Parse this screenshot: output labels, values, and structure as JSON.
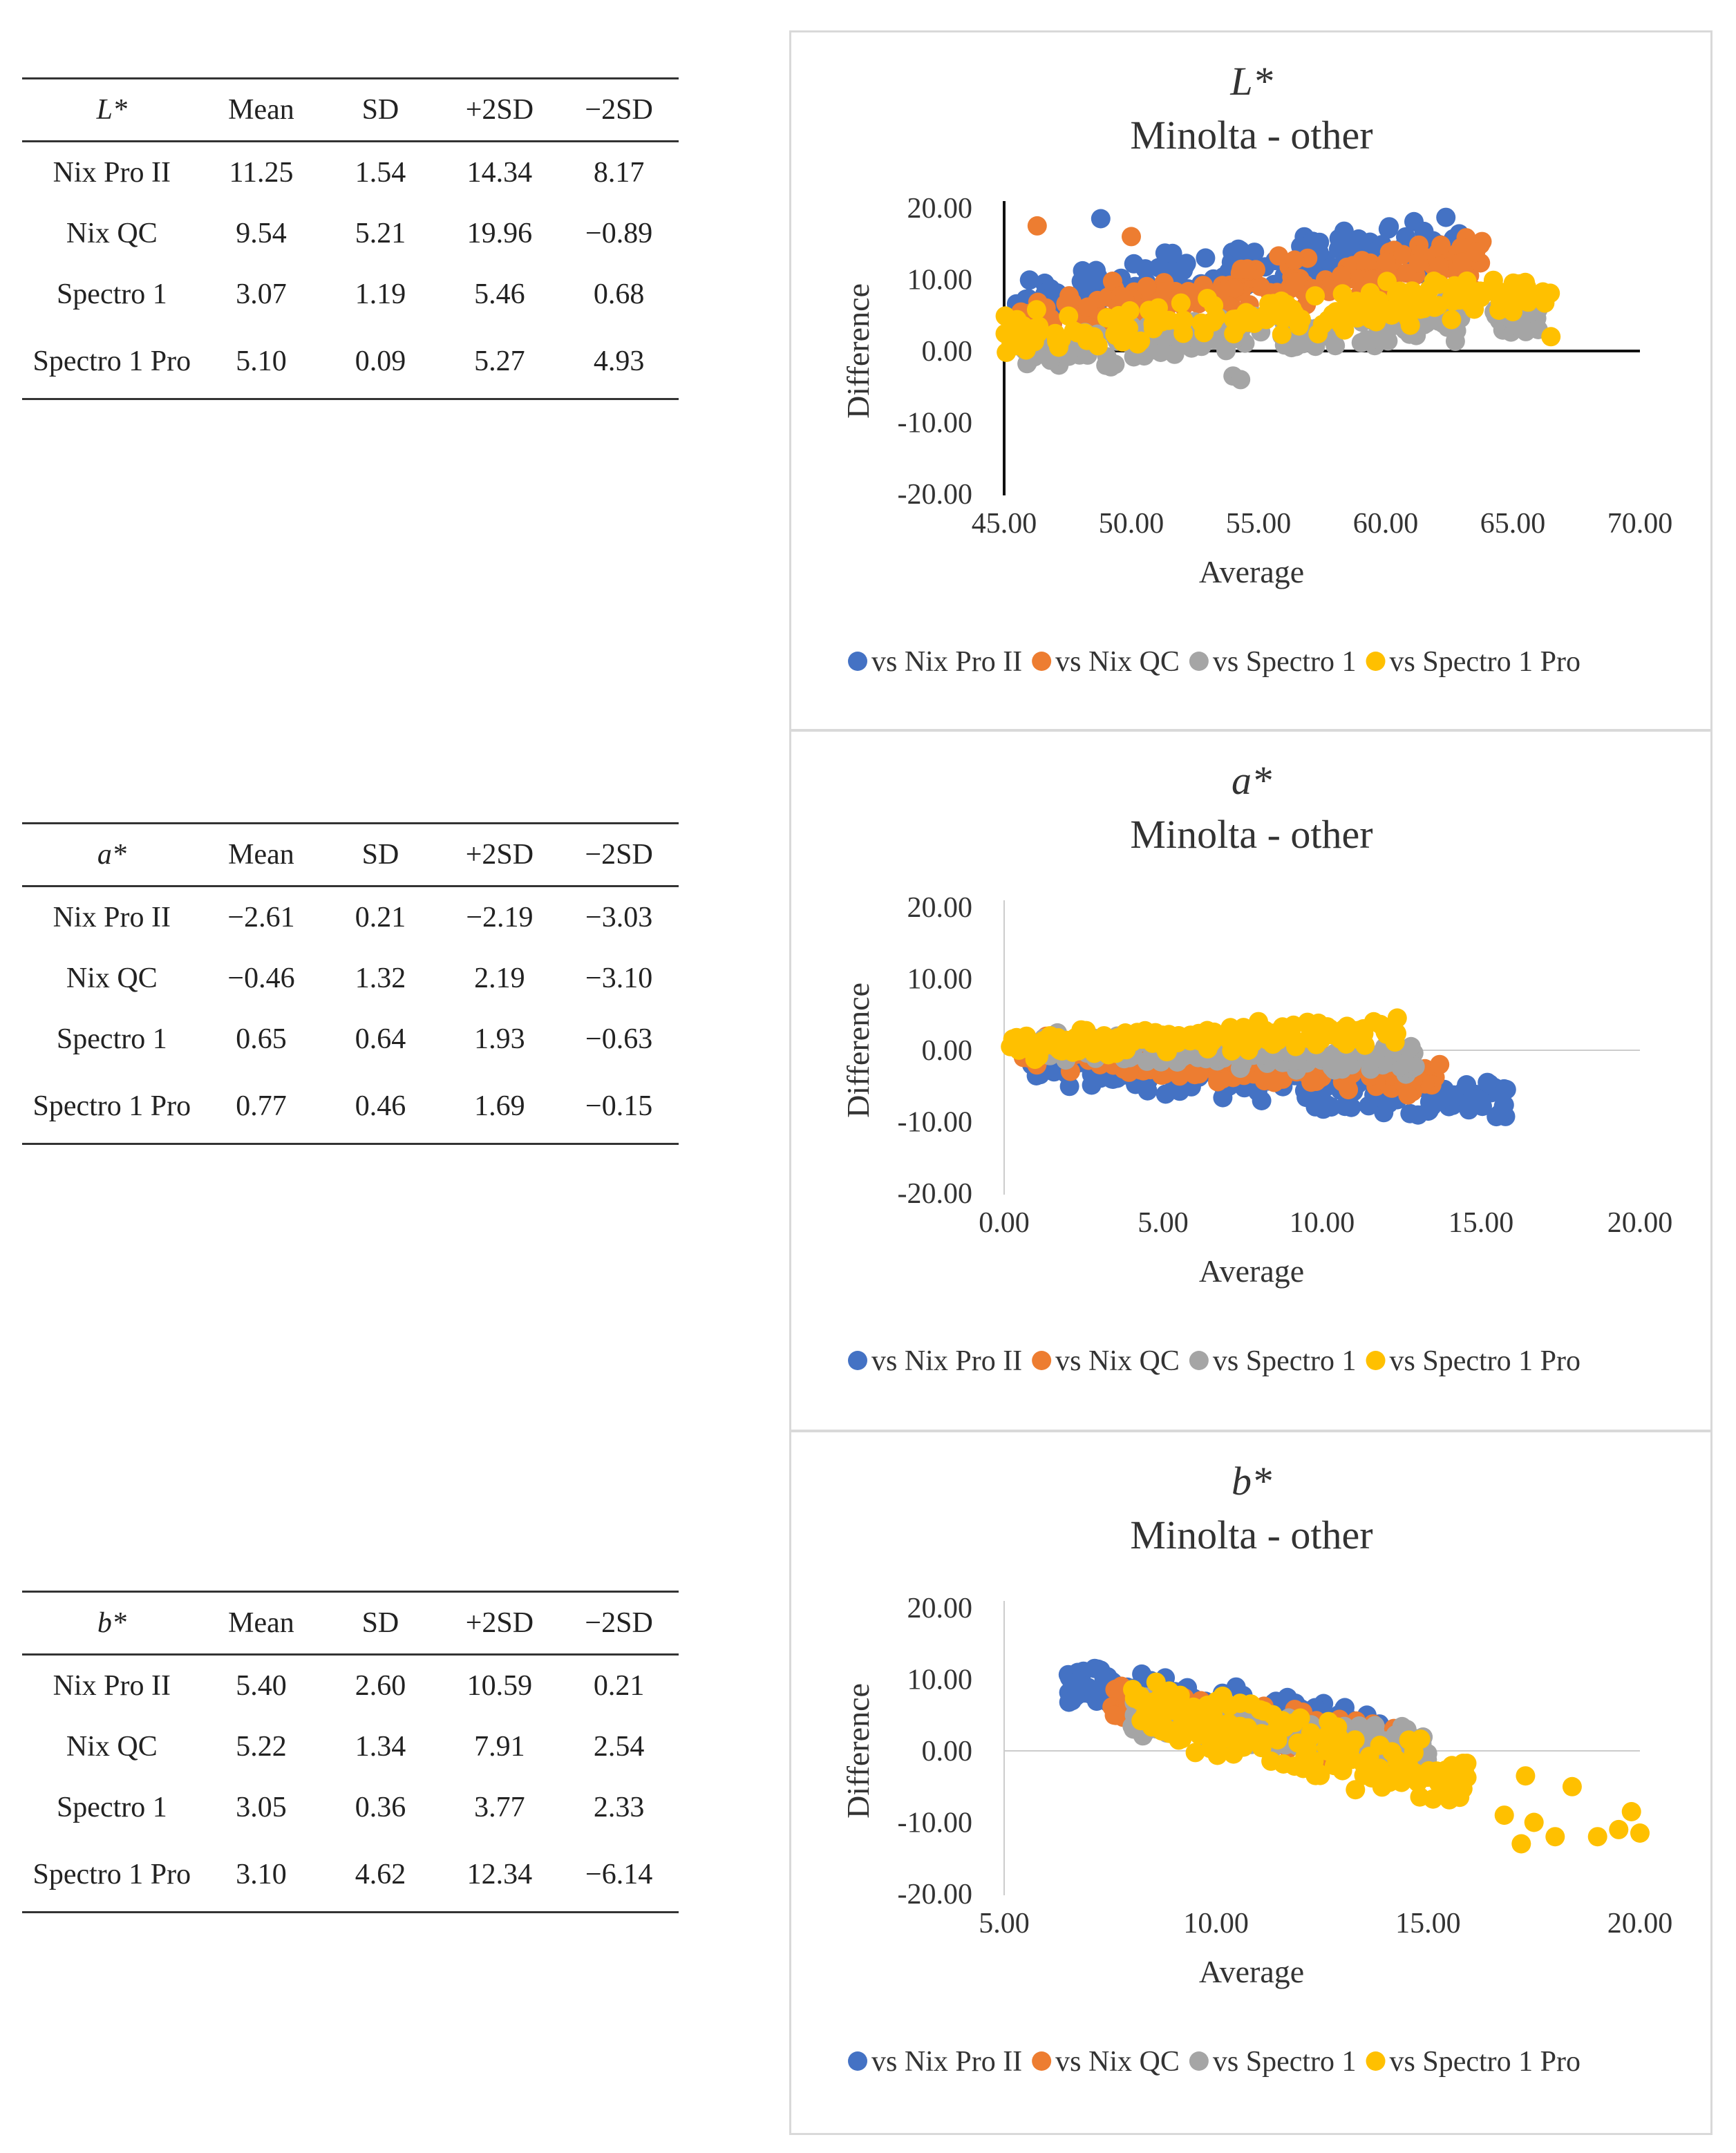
{
  "tables": [
    {
      "variable": "L*",
      "headers": [
        "Mean",
        "SD",
        "+2SD",
        "−2SD"
      ],
      "rows": [
        {
          "label": "Nix Pro II",
          "values": [
            "11.25",
            "1.54",
            "14.34",
            "8.17"
          ]
        },
        {
          "label": "Nix QC",
          "values": [
            "9.54",
            "5.21",
            "19.96",
            "−0.89"
          ]
        },
        {
          "label": "Spectro 1",
          "values": [
            "3.07",
            "1.19",
            "5.46",
            "0.68"
          ]
        },
        {
          "label": "Spectro 1 Pro",
          "values": [
            "5.10",
            "0.09",
            "5.27",
            "4.93"
          ]
        }
      ]
    },
    {
      "variable": "a*",
      "headers": [
        "Mean",
        "SD",
        "+2SD",
        "−2SD"
      ],
      "rows": [
        {
          "label": "Nix Pro II",
          "values": [
            "−2.61",
            "0.21",
            "−2.19",
            "−3.03"
          ]
        },
        {
          "label": "Nix QC",
          "values": [
            "−0.46",
            "1.32",
            "2.19",
            "−3.10"
          ]
        },
        {
          "label": "Spectro 1",
          "values": [
            "0.65",
            "0.64",
            "1.93",
            "−0.63"
          ]
        },
        {
          "label": "Spectro 1 Pro",
          "values": [
            "0.77",
            "0.46",
            "1.69",
            "−0.15"
          ]
        }
      ]
    },
    {
      "variable": "b*",
      "headers": [
        "Mean",
        "SD",
        "+2SD",
        "−2SD"
      ],
      "rows": [
        {
          "label": "Nix Pro II",
          "values": [
            "5.40",
            "2.60",
            "10.59",
            "0.21"
          ]
        },
        {
          "label": "Nix QC",
          "values": [
            "5.22",
            "1.34",
            "7.91",
            "2.54"
          ]
        },
        {
          "label": "Spectro 1",
          "values": [
            "3.05",
            "0.36",
            "3.77",
            "2.33"
          ]
        },
        {
          "label": "Spectro 1 Pro",
          "values": [
            "3.10",
            "4.62",
            "12.34",
            "−6.14"
          ]
        }
      ]
    }
  ],
  "chart_data": [
    {
      "type": "scatter",
      "title": "L*",
      "subtitle": "Minolta - other",
      "xlabel": "Average",
      "ylabel": "Difference",
      "xlim": [
        45,
        70
      ],
      "ylim": [
        -20,
        20
      ],
      "xticks": [
        "45.00",
        "50.00",
        "55.00",
        "60.00",
        "65.00",
        "70.00"
      ],
      "yticks": [
        "20.00",
        "10.00",
        "0.00",
        "-10.00",
        "-20.00"
      ],
      "legend_position": "bottom",
      "series": [
        {
          "name": "vs Nix Pro II",
          "color": "#4472c4",
          "x_range": [
            45.3,
            63
          ],
          "y_range": [
            7,
            15
          ],
          "special": [
            [
              48.8,
              18.5
            ],
            [
              57.4,
              15.2
            ],
            [
              62.2,
              11.5
            ]
          ]
        },
        {
          "name": "vs Nix QC",
          "color": "#ed7d31",
          "x_range": [
            45.5,
            64
          ],
          "y_range": [
            4,
            13
          ],
          "special": [
            [
              46.3,
              17.5
            ],
            [
              50,
              16
            ],
            [
              63.5,
              8.5
            ]
          ]
        },
        {
          "name": "vs Spectro 1",
          "color": "#a5a5a5",
          "x_range": [
            45.5,
            66
          ],
          "y_range": [
            0,
            5
          ],
          "special": [
            [
              54,
              -3.5
            ],
            [
              54.3,
              -4
            ],
            [
              49,
              -2
            ],
            [
              66,
              3
            ]
          ]
        },
        {
          "name": "vs Spectro 1 Pro",
          "color": "#ffc000",
          "x_range": [
            45,
            66.5
          ],
          "y_range": [
            2,
            8.5
          ],
          "special": [
            [
              66.5,
              2
            ],
            [
              65,
              5.5
            ]
          ]
        }
      ]
    },
    {
      "type": "scatter",
      "title": "a*",
      "subtitle": "Minolta - other",
      "xlabel": "Average",
      "ylabel": "Difference",
      "xlim": [
        0,
        20
      ],
      "ylim": [
        -20,
        20
      ],
      "xticks": [
        "0.00",
        "5.00",
        "10.00",
        "15.00",
        "20.00"
      ],
      "yticks": [
        "20.00",
        "10.00",
        "0.00",
        "-10.00",
        "-20.00"
      ],
      "legend_position": "bottom",
      "series": [
        {
          "name": "vs Nix Pro II",
          "color": "#4472c4",
          "x_range": [
            0.8,
            15.8
          ],
          "y_range": [
            -1.5,
            -7.5
          ],
          "special": [
            [
              15.8,
              -5.5
            ],
            [
              15.2,
              -4.5
            ]
          ]
        },
        {
          "name": "vs Nix QC",
          "color": "#ed7d31",
          "x_range": [
            0.5,
            13.7
          ],
          "y_range": [
            0,
            -4
          ],
          "special": [
            [
              13.7,
              -2
            ],
            [
              8.5,
              -4.5
            ]
          ]
        },
        {
          "name": "vs Spectro 1",
          "color": "#a5a5a5",
          "x_range": [
            1,
            13
          ],
          "y_range": [
            1,
            -1.5
          ],
          "special": [
            [
              12.8,
              0.5
            ]
          ]
        },
        {
          "name": "vs Spectro 1 Pro",
          "color": "#ffc000",
          "x_range": [
            0.2,
            12.5
          ],
          "y_range": [
            0.5,
            2.5
          ],
          "special": [
            [
              8,
              4
            ],
            [
              11.3,
              3
            ],
            [
              0.2,
              0.5
            ]
          ]
        }
      ]
    },
    {
      "type": "scatter",
      "title": "b*",
      "subtitle": "Minolta - other",
      "xlabel": "Average",
      "ylabel": "Difference",
      "xlim": [
        5,
        20
      ],
      "ylim": [
        -20,
        20
      ],
      "xticks": [
        "5.00",
        "10.00",
        "15.00",
        "20.00"
      ],
      "yticks": [
        "20.00",
        "10.00",
        "0.00",
        "-10.00",
        "-20.00"
      ],
      "legend_position": "bottom",
      "series": [
        {
          "name": "vs Nix Pro II",
          "color": "#4472c4",
          "x_range": [
            6.5,
            14
          ],
          "y_range": [
            9,
            3
          ],
          "special": [
            [
              6.6,
              7
            ],
            [
              6.8,
              9
            ],
            [
              8.8,
              10.2
            ]
          ]
        },
        {
          "name": "vs Nix QC",
          "color": "#ed7d31",
          "x_range": [
            7.5,
            14.5
          ],
          "y_range": [
            6.5,
            0
          ],
          "special": [
            [
              7.6,
              5
            ]
          ]
        },
        {
          "name": "vs Spectro 1",
          "color": "#a5a5a5",
          "x_range": [
            8,
            15
          ],
          "y_range": [
            5,
            0
          ],
          "special": [
            [
              14.5,
              3
            ]
          ]
        },
        {
          "name": "vs Spectro 1 Pro",
          "color": "#ffc000",
          "x_range": [
            8,
            16
          ],
          "y_range": [
            6,
            -4
          ],
          "special": [
            [
              17.5,
              -10
            ],
            [
              18,
              -12
            ],
            [
              18.4,
              -5
            ],
            [
              19,
              -12
            ],
            [
              19.5,
              -11
            ],
            [
              19.8,
              -8.5
            ],
            [
              20,
              -11.5
            ],
            [
              17.2,
              -13
            ],
            [
              16.8,
              -9
            ],
            [
              17.3,
              -3.5
            ]
          ]
        }
      ]
    }
  ]
}
